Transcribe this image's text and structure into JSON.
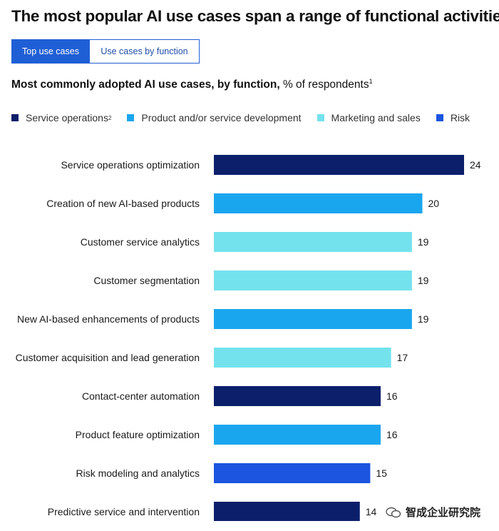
{
  "title": "The most popular AI use cases span a range of functional activities.",
  "tabs": [
    {
      "label": "Top use cases",
      "active": true
    },
    {
      "label": "Use cases by function",
      "active": false
    }
  ],
  "subtitle": {
    "strong": "Most commonly adopted AI use cases, by function,",
    "normal": " % of respondents",
    "footnote": "1"
  },
  "legend": [
    {
      "label": "Service operations",
      "footnote": "2",
      "color": "#0b1f6b"
    },
    {
      "label": "Product and/or service development",
      "footnote": "",
      "color": "#1aa6ee"
    },
    {
      "label": "Marketing and sales",
      "footnote": "",
      "color": "#74e2ec"
    },
    {
      "label": "Risk",
      "footnote": "",
      "color": "#1b55e0"
    }
  ],
  "chart_data": {
    "type": "bar",
    "orientation": "horizontal",
    "categories": [
      "Service operations optimization",
      "Creation of new AI-based products",
      "Customer service analytics",
      "Customer segmentation",
      "New AI-based enhancements of products",
      "Customer acquisition and lead generation",
      "Contact-center automation",
      "Product feature optimization",
      "Risk modeling and analytics",
      "Predictive service and intervention"
    ],
    "values": [
      24,
      20,
      19,
      19,
      19,
      17,
      16,
      16,
      15,
      14
    ],
    "functions": [
      "Service operations",
      "Product and/or service development",
      "Marketing and sales",
      "Marketing and sales",
      "Product and/or service development",
      "Marketing and sales",
      "Service operations",
      "Product and/or service development",
      "Risk",
      "Service operations"
    ],
    "xlim": [
      0,
      24
    ]
  },
  "watermark": {
    "text": "智成企业研究院",
    "icon": "wechat-icon"
  }
}
